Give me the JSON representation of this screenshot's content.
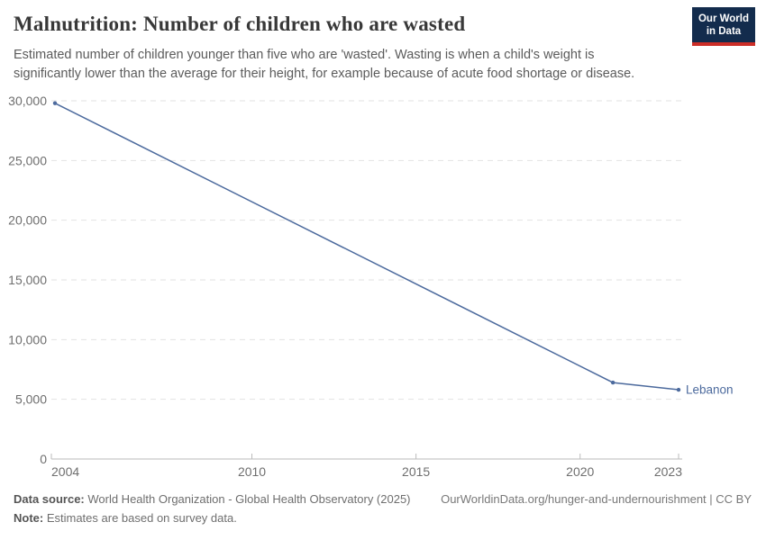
{
  "header": {
    "title": "Malnutrition: Number of children who are wasted",
    "subtitle_line1": "Estimated number of children younger than five who are 'wasted'. Wasting is when a child's weight is",
    "subtitle_line2": "significantly lower than the average for their height, for example because of acute food shortage or disease.",
    "logo_line1": "Our World",
    "logo_line2": "in Data"
  },
  "chart_data": {
    "type": "line",
    "title": "Malnutrition: Number of children who are wasted",
    "series": [
      {
        "name": "Lebanon",
        "points": [
          {
            "year": 2004,
            "value": 29800
          },
          {
            "year": 2021,
            "value": 6400
          },
          {
            "year": 2023,
            "value": 5800
          }
        ]
      }
    ],
    "end_label": "Lebanon",
    "x_ticks": [
      2004,
      2010,
      2015,
      2020,
      2023
    ],
    "y_ticks": [
      0,
      5000,
      10000,
      15000,
      20000,
      25000,
      30000
    ],
    "xlim": [
      2004,
      2023
    ],
    "ylim": [
      0,
      30000
    ],
    "grid": "horizontal-dashed",
    "legend_position": "end-of-line",
    "colors": {
      "line": "#4c6a9d",
      "grid": "#e2e2e2",
      "axis": "#bbbbbb",
      "tick_label": "#6e6e6e"
    }
  },
  "footer": {
    "source_label": "Data source:",
    "source_text": " World Health Organization - Global Health Observatory (2025)",
    "note_label": "Note:",
    "note_text": " Estimates are based on survey data.",
    "link_text": "OurWorldinData.org/hunger-and-undernourishment | CC BY"
  }
}
